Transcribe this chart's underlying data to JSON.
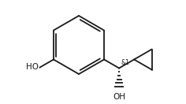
{
  "bg_color": "#ffffff",
  "line_color": "#1a1a1a",
  "text_color": "#1a1a1a",
  "figsize": [
    2.36,
    1.32
  ],
  "dpi": 100,
  "ho_label": "HO",
  "oh_label": "OH",
  "stereo_label": "&1"
}
